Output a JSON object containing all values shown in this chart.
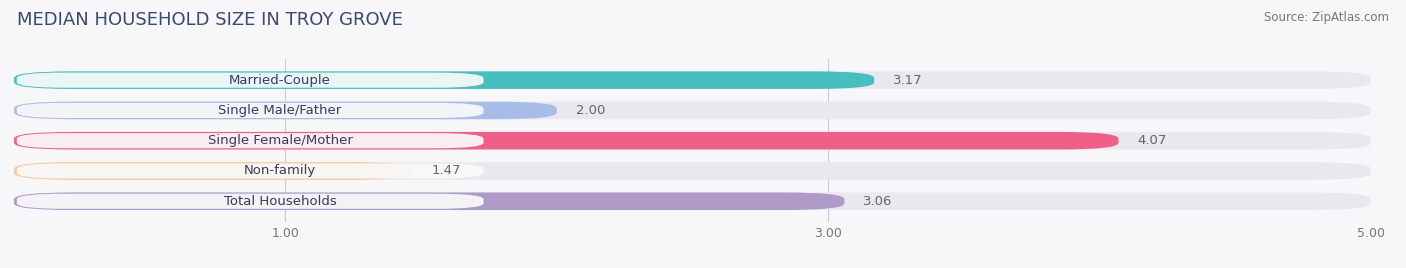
{
  "title": "MEDIAN HOUSEHOLD SIZE IN TROY GROVE",
  "source": "Source: ZipAtlas.com",
  "categories": [
    "Married-Couple",
    "Single Male/Father",
    "Single Female/Mother",
    "Non-family",
    "Total Households"
  ],
  "values": [
    3.17,
    2.0,
    4.07,
    1.47,
    3.06
  ],
  "bar_colors": [
    "#47bfc0",
    "#a8bce8",
    "#ee5f8a",
    "#f5c99a",
    "#b09ac8"
  ],
  "bar_bg_color": "#e8e8ee",
  "label_bg_color": "#fafafa",
  "xlim": [
    0,
    5.0
  ],
  "xticks": [
    1.0,
    3.0,
    5.0
  ],
  "label_fontsize": 9.5,
  "value_fontsize": 9.5,
  "title_fontsize": 13,
  "background_color": "#f7f7f9",
  "bar_height": 0.58,
  "bar_gap": 0.42
}
